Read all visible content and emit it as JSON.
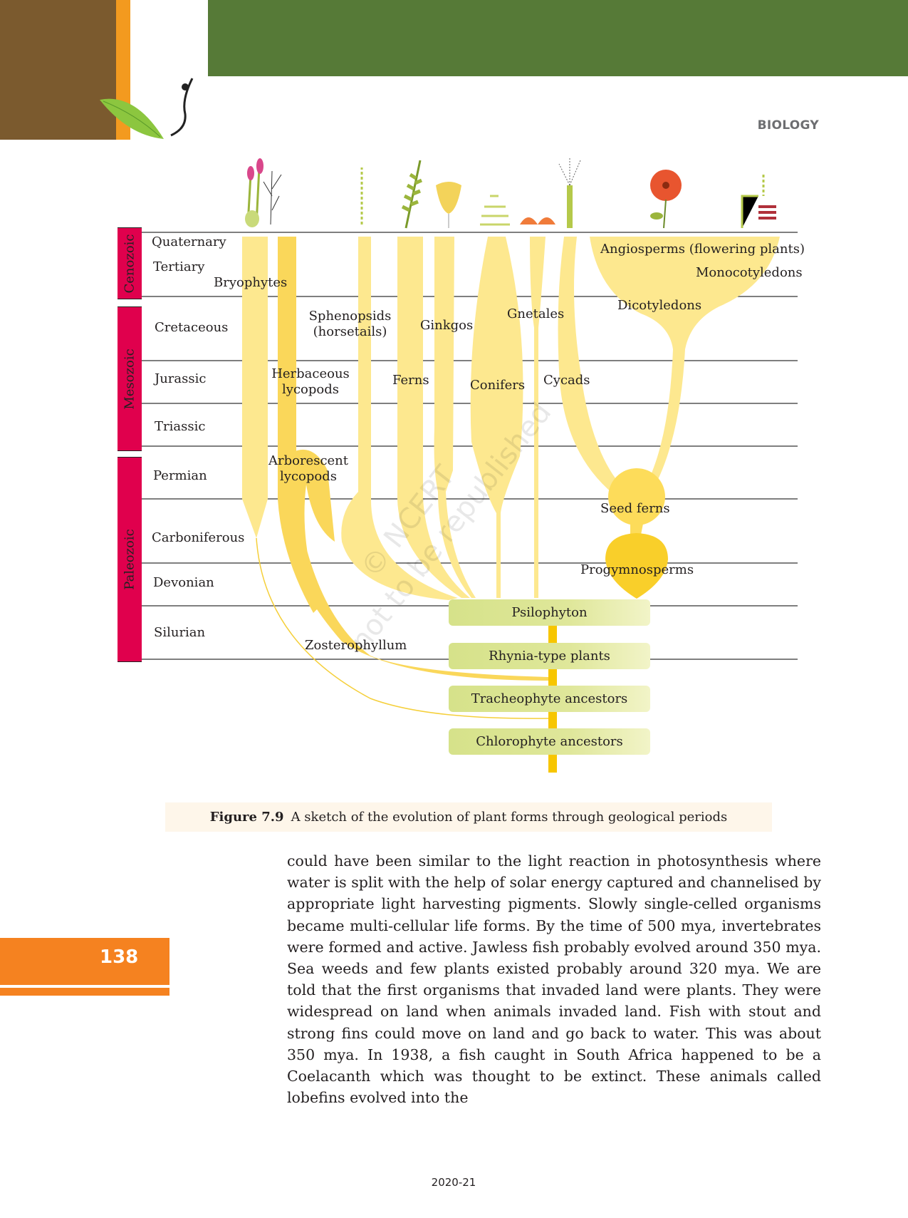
{
  "header": {
    "subject": "BIOLOGY"
  },
  "colors": {
    "header_green": "#567a37",
    "accent_orange": "#f58220",
    "era_red": "#e0004d",
    "branch_yellow": "#fde88f",
    "box_green": "#d6e28a"
  },
  "figure": {
    "eras": [
      "Cenozoic",
      "Mesozoic",
      "Paleozoic"
    ],
    "periods": [
      "Quaternary",
      "Tertiary",
      "Cretaceous",
      "Jurassic",
      "Triassic",
      "Permian",
      "Carboniferous",
      "Devonian",
      "Silurian"
    ],
    "groups": {
      "bryophytes": "Bryophytes",
      "sphenopsids": "Sphenopsids",
      "horsetails": "(horsetails)",
      "ginkgos": "Ginkgos",
      "gnetales": "Gnetales",
      "angiosperms": "Angiosperms (flowering plants)",
      "monocots": "Monocotyledons",
      "dicots": "Dicotyledons",
      "herbaceous": "Herbaceous",
      "herbaceous_2": "lycopods",
      "ferns": "Ferns",
      "conifers": "Conifers",
      "cycads": "Cycads",
      "arborescent": "Arborescent",
      "arborescent_2": "lycopods",
      "seed_ferns": "Seed ferns",
      "progymnosperms": "Progymnosperms",
      "zosterophyllum": "Zosterophyllum"
    },
    "ancestors": [
      "Psilophyton",
      "Rhynia-type plants",
      "Tracheophyte ancestors",
      "Chlorophyte ancestors"
    ],
    "watermark": [
      "© NCERT",
      "not to be republished"
    ],
    "caption_label": "Figure 7.9",
    "caption_text": "A sketch of the evolution of plant forms through geological periods"
  },
  "body_text": "could have been similar to the light reaction in photosynthesis where water is split with the help of solar energy captured and channelised by appropriate light harvesting pigments. Slowly single-celled organisms became multi-cellular life forms. By the time of 500 mya, invertebrates were formed and active. Jawless fish probably evolved around 350 mya. Sea weeds and few plants existed probably around 320 mya.  We are told that the first organisms that invaded land were plants. They were widespread on land when animals invaded land. Fish with stout and strong fins could move on land and go back to water. This was about 350 mya. In 1938, a fish caught in South Africa happened to be a Coelacanth which was thought to be extinct. These animals called lobefins evolved into the",
  "footer": {
    "page_number": "138",
    "year": "2020-21"
  }
}
